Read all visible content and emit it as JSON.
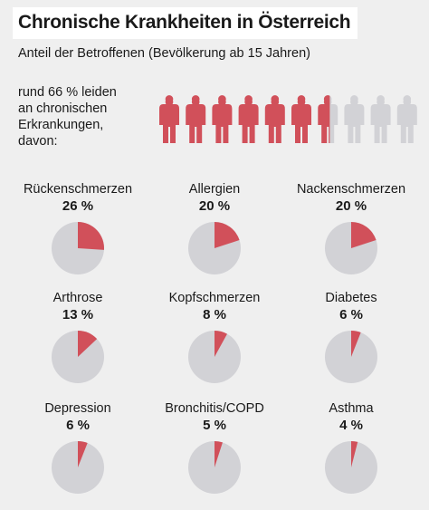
{
  "title": "Chronische Krankheiten in Österreich",
  "subtitle": "Anteil der Betroffenen (Bevölkerung ab 15 Jahren)",
  "lead_lines": [
    "rund 66 % leiden",
    "an chronischen",
    "Erkrankungen,",
    "davon:"
  ],
  "colors": {
    "accent": "#d1505a",
    "grey": "#d2d2d6",
    "background": "#efefef"
  },
  "chart_data": [
    {
      "type": "pictogram",
      "total_icons": 10,
      "value_percent": 66,
      "icon": "person-icon"
    },
    {
      "type": "pie",
      "items": [
        {
          "label": "Rückenschmerzen",
          "value": 26,
          "display": "26 %"
        },
        {
          "label": "Allergien",
          "value": 20,
          "display": "20 %"
        },
        {
          "label": "Nackenschmerzen",
          "value": 20,
          "display": "20 %"
        },
        {
          "label": "Arthrose",
          "value": 13,
          "display": "13 %"
        },
        {
          "label": "Kopfschmerzen",
          "value": 8,
          "display": "8 %"
        },
        {
          "label": "Diabetes",
          "value": 6,
          "display": "6 %"
        },
        {
          "label": "Depression",
          "value": 6,
          "display": "6 %"
        },
        {
          "label": "Bronchitis/COPD",
          "value": 5,
          "display": "5 %"
        },
        {
          "label": "Asthma",
          "value": 4,
          "display": "4 %"
        }
      ]
    }
  ]
}
